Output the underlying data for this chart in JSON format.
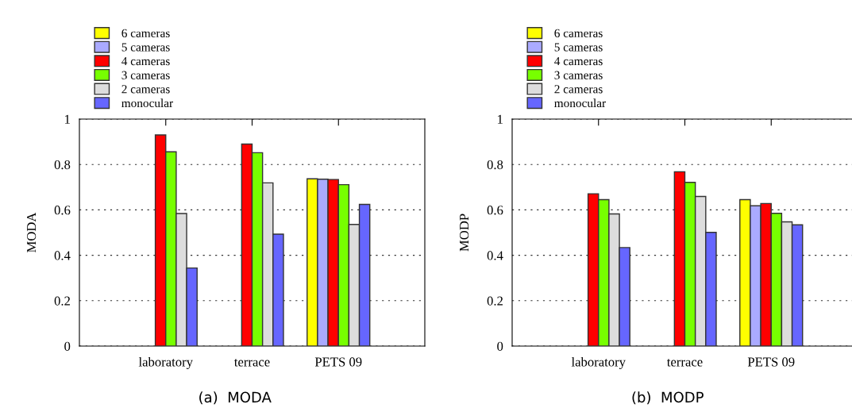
{
  "chart_data": [
    {
      "type": "bar",
      "ylabel": "MODA",
      "categories": [
        "laboratory",
        "terrace",
        "PETS 09"
      ],
      "ylim": [
        0,
        1
      ],
      "yticks": [
        0,
        0.2,
        0.4,
        0.6,
        0.8,
        1
      ],
      "grid": "y",
      "legend": "top left",
      "annotations": [
        "(a)  MODA"
      ],
      "series": [
        {
          "name": "6 cameras",
          "color": "#ffff00",
          "values": [
            null,
            null,
            0.737
          ]
        },
        {
          "name": "5 cameras",
          "color": "#aaaaff",
          "values": [
            null,
            null,
            0.735
          ]
        },
        {
          "name": "4 cameras",
          "color": "#ff0000",
          "values": [
            0.93,
            0.89,
            0.734
          ]
        },
        {
          "name": "3 cameras",
          "color": "#77ff00",
          "values": [
            0.856,
            0.852,
            0.711
          ]
        },
        {
          "name": "2 cameras",
          "color": "#dddddd",
          "values": [
            0.584,
            0.719,
            0.536
          ]
        },
        {
          "name": "monocular",
          "color": "#6666ff",
          "values": [
            0.344,
            0.493,
            0.624
          ]
        }
      ]
    },
    {
      "type": "bar",
      "ylabel": "MODP",
      "categories": [
        "laboratory",
        "terrace",
        "PETS 09"
      ],
      "ylim": [
        0,
        1
      ],
      "yticks": [
        0,
        0.2,
        0.4,
        0.6,
        0.8,
        1
      ],
      "grid": "y",
      "legend": "top left",
      "annotations": [
        "(b)  MODP"
      ],
      "series": [
        {
          "name": "6 cameras",
          "color": "#ffff00",
          "values": [
            null,
            null,
            0.645
          ]
        },
        {
          "name": "5 cameras",
          "color": "#aaaaff",
          "values": [
            null,
            null,
            0.618
          ]
        },
        {
          "name": "4 cameras",
          "color": "#ff0000",
          "values": [
            0.671,
            0.768,
            0.628
          ]
        },
        {
          "name": "3 cameras",
          "color": "#77ff00",
          "values": [
            0.645,
            0.721,
            0.585
          ]
        },
        {
          "name": "2 cameras",
          "color": "#dddddd",
          "values": [
            0.582,
            0.659,
            0.547
          ]
        },
        {
          "name": "monocular",
          "color": "#6666ff",
          "values": [
            0.434,
            0.501,
            0.534
          ]
        }
      ]
    }
  ]
}
